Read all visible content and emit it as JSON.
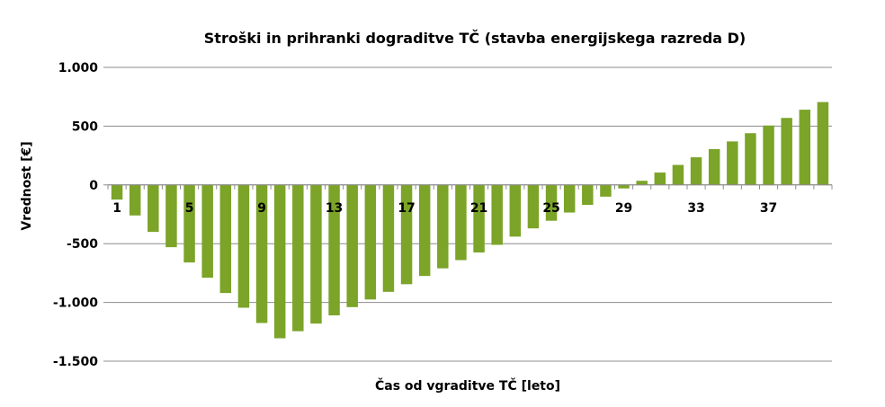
{
  "chart_data": {
    "type": "bar",
    "title": "Stroški in prihranki dograditve TČ (stavba energijskega razreda D)",
    "xlabel": "Čas od vgraditve TČ [leto]",
    "ylabel": "Vrednost [€]",
    "ylim": [
      -1500,
      1000
    ],
    "yticks": [
      1000,
      500,
      0,
      -500,
      -1000,
      -1500
    ],
    "ytick_labels": [
      "1.000",
      "500",
      "0",
      "-500",
      "-1.000",
      "-1.500"
    ],
    "xtick_labels": [
      "1",
      "5",
      "9",
      "13",
      "17",
      "21",
      "25",
      "29",
      "33",
      "37"
    ],
    "xtick_years": [
      1,
      5,
      9,
      13,
      17,
      21,
      25,
      29,
      33,
      37
    ],
    "grid": true,
    "bar_color": "#7ba428",
    "categories": [
      1,
      2,
      3,
      4,
      5,
      6,
      7,
      8,
      9,
      10,
      11,
      12,
      13,
      14,
      15,
      16,
      17,
      18,
      19,
      20,
      21,
      22,
      23,
      24,
      25,
      26,
      27,
      28,
      29,
      30,
      31,
      32,
      33,
      34,
      35,
      36,
      37,
      38,
      39,
      40
    ],
    "values": [
      -125,
      -260,
      -400,
      -530,
      -660,
      -790,
      -920,
      -1045,
      -1175,
      -1305,
      -1245,
      -1180,
      -1110,
      -1040,
      -975,
      -910,
      -845,
      -775,
      -710,
      -640,
      -575,
      -510,
      -440,
      -370,
      -305,
      -235,
      -170,
      -100,
      -30,
      35,
      105,
      170,
      235,
      305,
      370,
      440,
      505,
      570,
      640,
      705
    ]
  }
}
